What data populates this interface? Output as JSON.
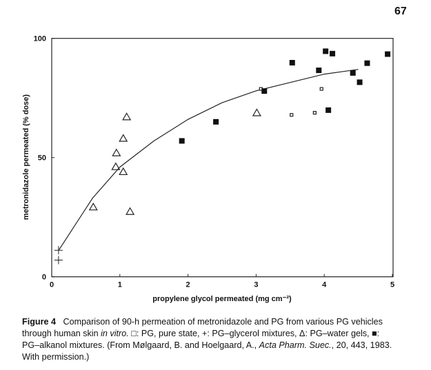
{
  "page_number": "67",
  "chart_data": {
    "type": "scatter",
    "title": "",
    "xlabel": "propylene glycol permeated (mg cm⁻²)",
    "ylabel": "metronidazole permeated (% dose)",
    "xlim": [
      0,
      5
    ],
    "ylim": [
      0,
      100
    ],
    "xticks": [
      "0",
      "1",
      "2",
      "3",
      "4",
      "5"
    ],
    "xtick_values": [
      0,
      1,
      2,
      3,
      4,
      5
    ],
    "yticks": [
      "0",
      "50",
      "100"
    ],
    "ytick_values": [
      0,
      50,
      100
    ],
    "grid": false,
    "series": [
      {
        "name": "PG, pure state",
        "marker": "open-square-small",
        "points": [
          [
            3.07,
            78.8
          ],
          [
            3.96,
            78.8
          ],
          [
            3.52,
            67.9
          ],
          [
            3.86,
            68.8
          ]
        ]
      },
      {
        "name": "PG-glycerol mixtures",
        "marker": "plus",
        "points": [
          [
            0.1,
            11.1
          ],
          [
            0.1,
            7.0
          ]
        ]
      },
      {
        "name": "PG-water gels",
        "marker": "open-triangle",
        "points": [
          [
            0.61,
            29.2
          ],
          [
            0.94,
            46.1
          ],
          [
            0.95,
            51.9
          ],
          [
            1.05,
            58.0
          ],
          [
            1.1,
            67.0
          ],
          [
            1.05,
            44.0
          ],
          [
            1.15,
            27.3
          ],
          [
            3.01,
            68.7
          ]
        ]
      },
      {
        "name": "PG-alkanol mixtures",
        "marker": "filled-square",
        "points": [
          [
            1.91,
            57.0
          ],
          [
            2.41,
            65.0
          ],
          [
            3.12,
            77.9
          ],
          [
            3.53,
            89.8
          ],
          [
            3.92,
            86.6
          ],
          [
            4.02,
            94.6
          ],
          [
            4.12,
            93.6
          ],
          [
            4.06,
            69.9
          ],
          [
            4.42,
            85.5
          ],
          [
            4.52,
            81.6
          ],
          [
            4.63,
            89.6
          ],
          [
            4.93,
            93.4
          ]
        ]
      }
    ],
    "fit_curve": [
      [
        0.1,
        11
      ],
      [
        0.6,
        33
      ],
      [
        1.0,
        46
      ],
      [
        1.5,
        57
      ],
      [
        2.0,
        66
      ],
      [
        2.5,
        73
      ],
      [
        3.0,
        78
      ],
      [
        3.5,
        81.5
      ],
      [
        4.0,
        85
      ],
      [
        4.5,
        87
      ]
    ]
  },
  "caption": {
    "label": "Figure 4",
    "line1": "Comparison of 90-h permeation of metronidazole and PG from various PG vehicles",
    "line2a": "through human skin ",
    "line2b": "in vitro.",
    "line2c": " □: PG, pure state, +: PG–glycerol mixtures, Δ: PG–water gels, ■:",
    "line3a": "PG–alkanol mixtures. (From Mølgaard, B. and Hoelgaard, A., ",
    "line3b": "Acta Pharm. Suec.",
    "line3c": ", 20, 443, 1983.",
    "line4": "With permission.)"
  }
}
